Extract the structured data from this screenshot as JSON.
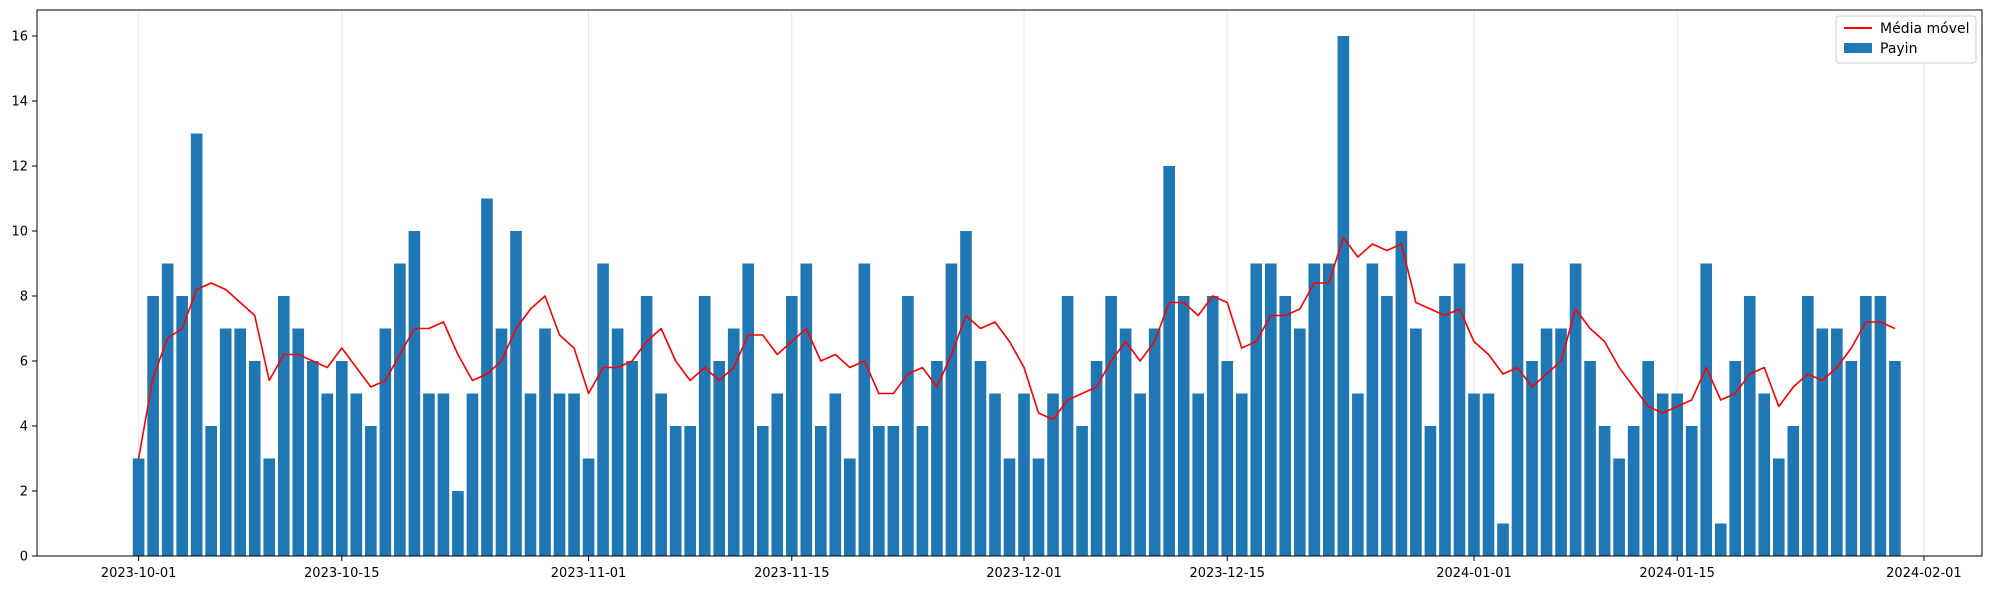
{
  "chart_data": {
    "type": "bar",
    "title": "",
    "xlabel": "",
    "ylabel": "",
    "x_start": "2023-10-01",
    "x_end": "2024-01-30",
    "xlim": [
      "2023-09-24",
      "2024-02-05"
    ],
    "ylim": [
      0,
      16.8
    ],
    "yticks": [
      0,
      2,
      4,
      6,
      8,
      10,
      12,
      14,
      16
    ],
    "xticks": [
      {
        "date": "2023-10-01",
        "label": "2023-10-01"
      },
      {
        "date": "2023-10-15",
        "label": "2023-10-15"
      },
      {
        "date": "2023-11-01",
        "label": "2023-11-01"
      },
      {
        "date": "2023-11-15",
        "label": "2023-11-15"
      },
      {
        "date": "2023-12-01",
        "label": "2023-12-01"
      },
      {
        "date": "2023-12-15",
        "label": "2023-12-15"
      },
      {
        "date": "2024-01-01",
        "label": "2024-01-01"
      },
      {
        "date": "2024-01-15",
        "label": "2024-01-15"
      },
      {
        "date": "2024-02-01",
        "label": "2024-02-01"
      }
    ],
    "grid": "vertical",
    "legend_position": "top-right",
    "series": [
      {
        "name": "Payin",
        "kind": "bar",
        "color": "#1f77b4",
        "values": [
          3,
          8,
          9,
          8,
          13,
          4,
          7,
          7,
          6,
          3,
          8,
          7,
          6,
          5,
          6,
          5,
          4,
          7,
          9,
          10,
          5,
          5,
          2,
          5,
          11,
          7,
          10,
          5,
          7,
          5,
          5,
          3,
          9,
          7,
          6,
          8,
          5,
          4,
          4,
          8,
          6,
          7,
          9,
          4,
          5,
          8,
          9,
          4,
          5,
          3,
          9,
          4,
          4,
          8,
          4,
          6,
          9,
          10,
          6,
          5,
          3,
          5,
          3,
          5,
          8,
          4,
          6,
          8,
          7,
          5,
          7,
          12,
          8,
          5,
          8,
          6,
          5,
          9,
          9,
          8,
          7,
          9,
          9,
          16,
          5,
          9,
          8,
          10,
          7,
          4,
          8,
          9,
          5,
          5,
          1,
          9,
          6,
          7,
          7,
          9,
          6,
          4,
          3,
          4,
          6,
          5,
          5,
          4,
          9,
          1,
          6,
          8,
          5,
          3,
          4,
          8,
          7,
          7,
          6,
          8,
          8,
          6
        ]
      },
      {
        "name": "Média móvel",
        "kind": "line",
        "color": "#ff0000",
        "values": [
          3,
          5.5,
          6.7,
          7,
          8.2,
          8.4,
          8.2,
          7.8,
          7.4,
          5.4,
          6.2,
          6.2,
          6,
          5.8,
          6.4,
          5.8,
          5.2,
          5.4,
          6.2,
          7,
          7,
          7.2,
          6.2,
          5.4,
          5.6,
          6,
          7,
          7.6,
          8,
          6.8,
          6.4,
          5,
          5.8,
          5.8,
          6,
          6.6,
          7,
          6,
          5.4,
          5.8,
          5.4,
          5.8,
          6.8,
          6.8,
          6.2,
          6.6,
          7,
          6,
          6.2,
          5.8,
          6,
          5,
          5,
          5.6,
          5.8,
          5.2,
          6.2,
          7.4,
          7,
          7.2,
          6.6,
          5.8,
          4.4,
          4.2,
          4.8,
          5,
          5.2,
          6,
          6.6,
          6,
          6.6,
          7.8,
          7.8,
          7.4,
          8,
          7.8,
          6.4,
          6.6,
          7.4,
          7.4,
          7.6,
          8.4,
          8.4,
          9.8,
          9.2,
          9.6,
          9.4,
          9.6,
          7.8,
          7.6,
          7.4,
          7.6,
          6.6,
          6.2,
          5.6,
          5.8,
          5.2,
          5.6,
          6,
          7.6,
          7,
          6.6,
          5.8,
          5.2,
          4.6,
          4.4,
          4.6,
          4.8,
          5.8,
          4.8,
          5,
          5.6,
          5.8,
          4.6,
          5.2,
          5.6,
          5.4,
          5.8,
          6.4,
          7.2,
          7.2,
          7
        ]
      }
    ]
  }
}
